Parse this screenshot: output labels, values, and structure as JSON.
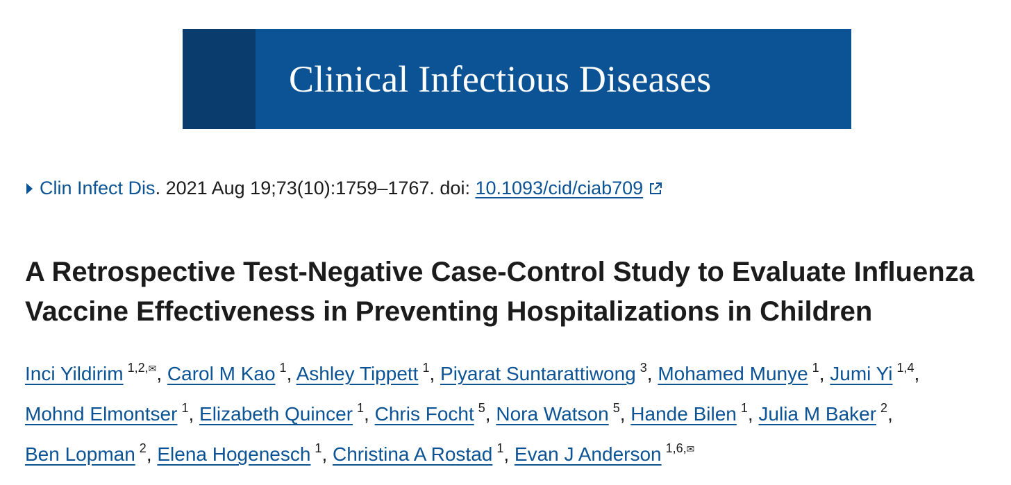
{
  "banner": {
    "journal_title": "Clinical Infectious Diseases"
  },
  "citation": {
    "journal_abbrev": "Clin Infect Dis",
    "details": ". 2021 Aug 19;73(10):1759–1767. doi: ",
    "doi": "10.1093/cid/ciab709"
  },
  "article": {
    "title": "A Retrospective Test-Negative Case-Control Study to Evaluate Influenza Vaccine Effectiveness in Preventing Hospitalizations in Children"
  },
  "authors": [
    {
      "name": "Inci Yildirim",
      "affil": "1,2,",
      "corresponding": true
    },
    {
      "name": "Carol M Kao",
      "affil": "1",
      "corresponding": false
    },
    {
      "name": "Ashley Tippett",
      "affil": "1",
      "corresponding": false
    },
    {
      "name": "Piyarat Suntarattiwong",
      "affil": "3",
      "corresponding": false
    },
    {
      "name": "Mohamed Munye",
      "affil": "1",
      "corresponding": false
    },
    {
      "name": "Jumi Yi",
      "affil": "1,4",
      "corresponding": false
    },
    {
      "name": "Mohnd Elmontser",
      "affil": "1",
      "corresponding": false
    },
    {
      "name": "Elizabeth Quincer",
      "affil": "1",
      "corresponding": false
    },
    {
      "name": "Chris Focht",
      "affil": "5",
      "corresponding": false
    },
    {
      "name": "Nora Watson",
      "affil": "5",
      "corresponding": false
    },
    {
      "name": "Hande Bilen",
      "affil": "1",
      "corresponding": false
    },
    {
      "name": "Julia M Baker",
      "affil": "2",
      "corresponding": false
    },
    {
      "name": "Ben Lopman",
      "affil": "2",
      "corresponding": false
    },
    {
      "name": "Elena Hogenesch",
      "affil": "1",
      "corresponding": false
    },
    {
      "name": "Christina A Rostad",
      "affil": "1",
      "corresponding": false
    },
    {
      "name": "Evan J Anderson",
      "affil": "1,6,",
      "corresponding": true
    }
  ],
  "icons": {
    "mail_glyph": "✉",
    "link_color": "#0b5394",
    "banner_color": "#0b5394",
    "banner_stripe_color": "#0a3d6e"
  }
}
